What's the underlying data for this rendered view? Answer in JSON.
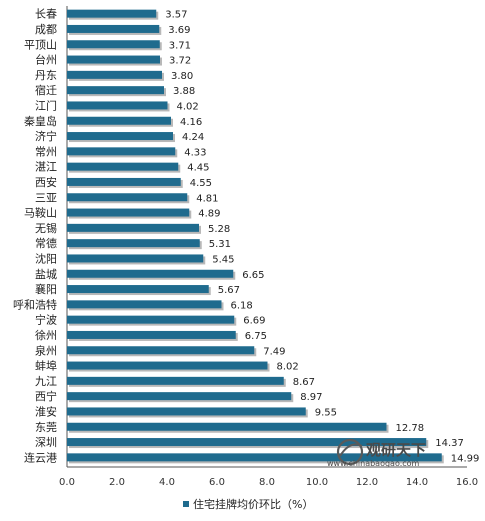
{
  "chart_data": {
    "type": "bar",
    "orientation": "horizontal",
    "categories": [
      "长春",
      "成都",
      "平顶山",
      "台州",
      "丹东",
      "宿迁",
      "江门",
      "秦皇岛",
      "济宁",
      "常州",
      "湛江",
      "西安",
      "三亚",
      "马鞍山",
      "无锡",
      "常德",
      "沈阳",
      "盐城",
      "襄阳",
      "呼和浩特",
      "宁波",
      "徐州",
      "泉州",
      "蚌埠",
      "九江",
      "西宁",
      "淮安",
      "东莞",
      "深圳",
      "连云港"
    ],
    "series": [
      {
        "name": "住宅挂牌均价环比（%）",
        "values": [
          3.57,
          3.69,
          3.71,
          3.72,
          3.8,
          3.88,
          4.02,
          4.16,
          4.24,
          4.33,
          4.45,
          4.55,
          4.81,
          4.89,
          5.28,
          5.31,
          5.45,
          6.65,
          5.67,
          6.18,
          6.69,
          6.75,
          7.49,
          8.02,
          8.67,
          8.97,
          9.55,
          12.78,
          14.37,
          14.99
        ],
        "labels": [
          "3.57",
          "3.69",
          "3.71",
          "3.72",
          "3.80",
          "3.88",
          "4.02",
          "4.16",
          "4.24",
          "4.33",
          "4.45",
          "4.55",
          "4.81",
          "4.89",
          "5.28",
          "5.31",
          "5.45",
          "6.65",
          "5.67",
          "6.18",
          "6.69",
          "6.75",
          "7.49",
          "8.02",
          "8.67",
          "8.97",
          "9.55",
          "12.78",
          "14.37",
          "14.99"
        ]
      }
    ],
    "xlim": [
      0,
      16
    ],
    "xticks": [
      "0.0",
      "2.0",
      "4.0",
      "6.0",
      "8.0",
      "10.0",
      "12.0",
      "14.0",
      "16.0"
    ],
    "grid": false,
    "legend_position": "bottom",
    "bar_color": "#1f6b8e",
    "bar_shadow_color": "#b8b8b8"
  },
  "watermark": {
    "name": "观研天下",
    "url": "www.chinabaogao.com"
  }
}
